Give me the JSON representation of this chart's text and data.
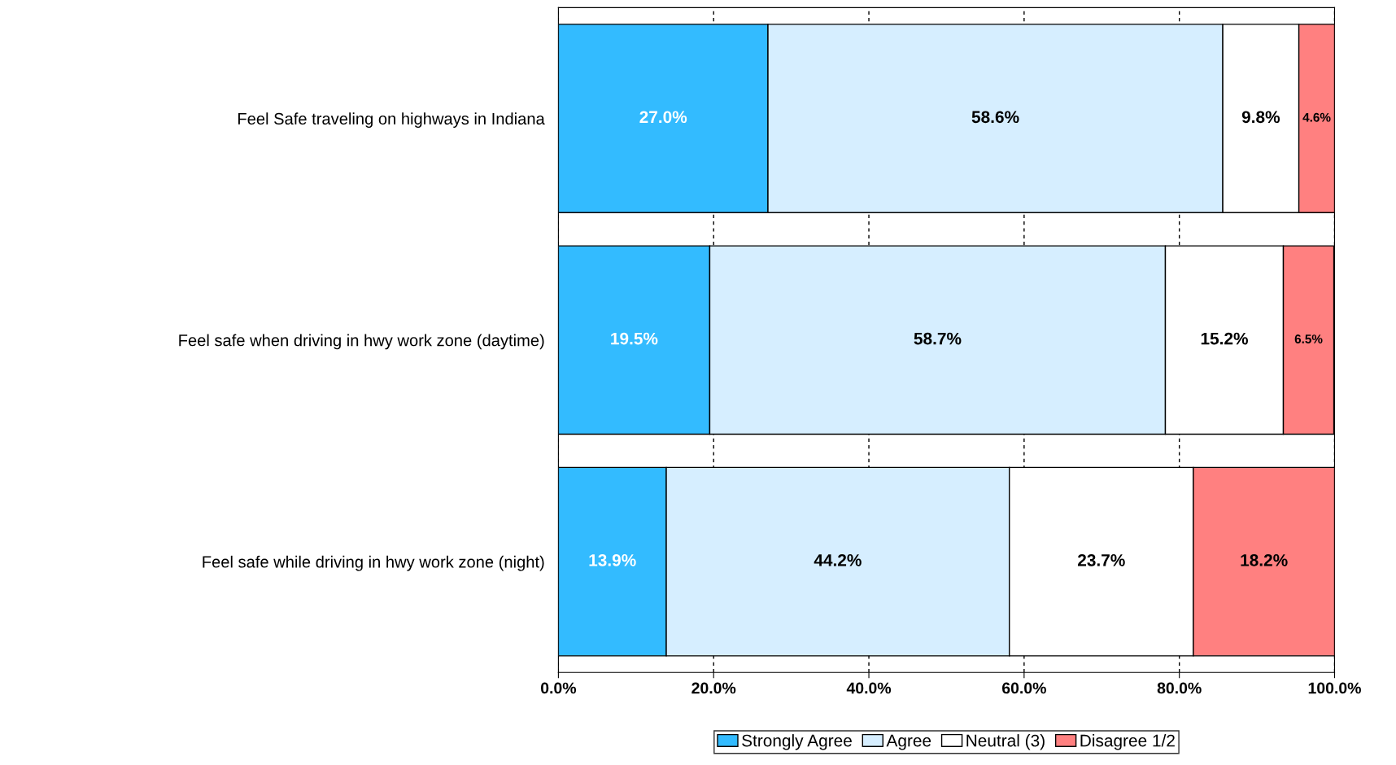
{
  "chart_data": {
    "type": "bar",
    "orientation": "horizontal",
    "stacked": true,
    "categories": [
      "Feel Safe traveling on highways in Indiana",
      "Feel safe when driving in hwy work zone (daytime)",
      "Feel safe while driving in hwy work zone (night)"
    ],
    "series": [
      {
        "name": "Strongly Agree",
        "color": "#33bbff",
        "values": [
          27.0,
          19.5,
          13.9
        ],
        "value_labels": [
          "27.0%",
          "19.5%",
          "13.9%"
        ]
      },
      {
        "name": "Agree",
        "color": "#d6eeff",
        "values": [
          58.6,
          58.7,
          44.2
        ],
        "value_labels": [
          "58.6%",
          "58.7%",
          "44.2%"
        ]
      },
      {
        "name": "Neutral (3)",
        "color": "#ffffff",
        "values": [
          9.8,
          15.2,
          23.7
        ],
        "value_labels": [
          "9.8%",
          "15.2%",
          "23.7%"
        ]
      },
      {
        "name": "Disagree 1/2",
        "color": "#ff8080",
        "values": [
          4.6,
          6.5,
          18.2
        ],
        "value_labels": [
          "4.6%",
          "6.5%",
          "18.2%"
        ]
      }
    ],
    "xlim": [
      0,
      100
    ],
    "xticks": [
      {
        "value": 0,
        "label": "0.0%"
      },
      {
        "value": 20,
        "label": "20.0%"
      },
      {
        "value": 40,
        "label": "40.0%"
      },
      {
        "value": 60,
        "label": "60.0%"
      },
      {
        "value": 80,
        "label": "80.0%"
      },
      {
        "value": 100,
        "label": "100.0%"
      }
    ],
    "grid": "x",
    "legend": "bottom"
  }
}
